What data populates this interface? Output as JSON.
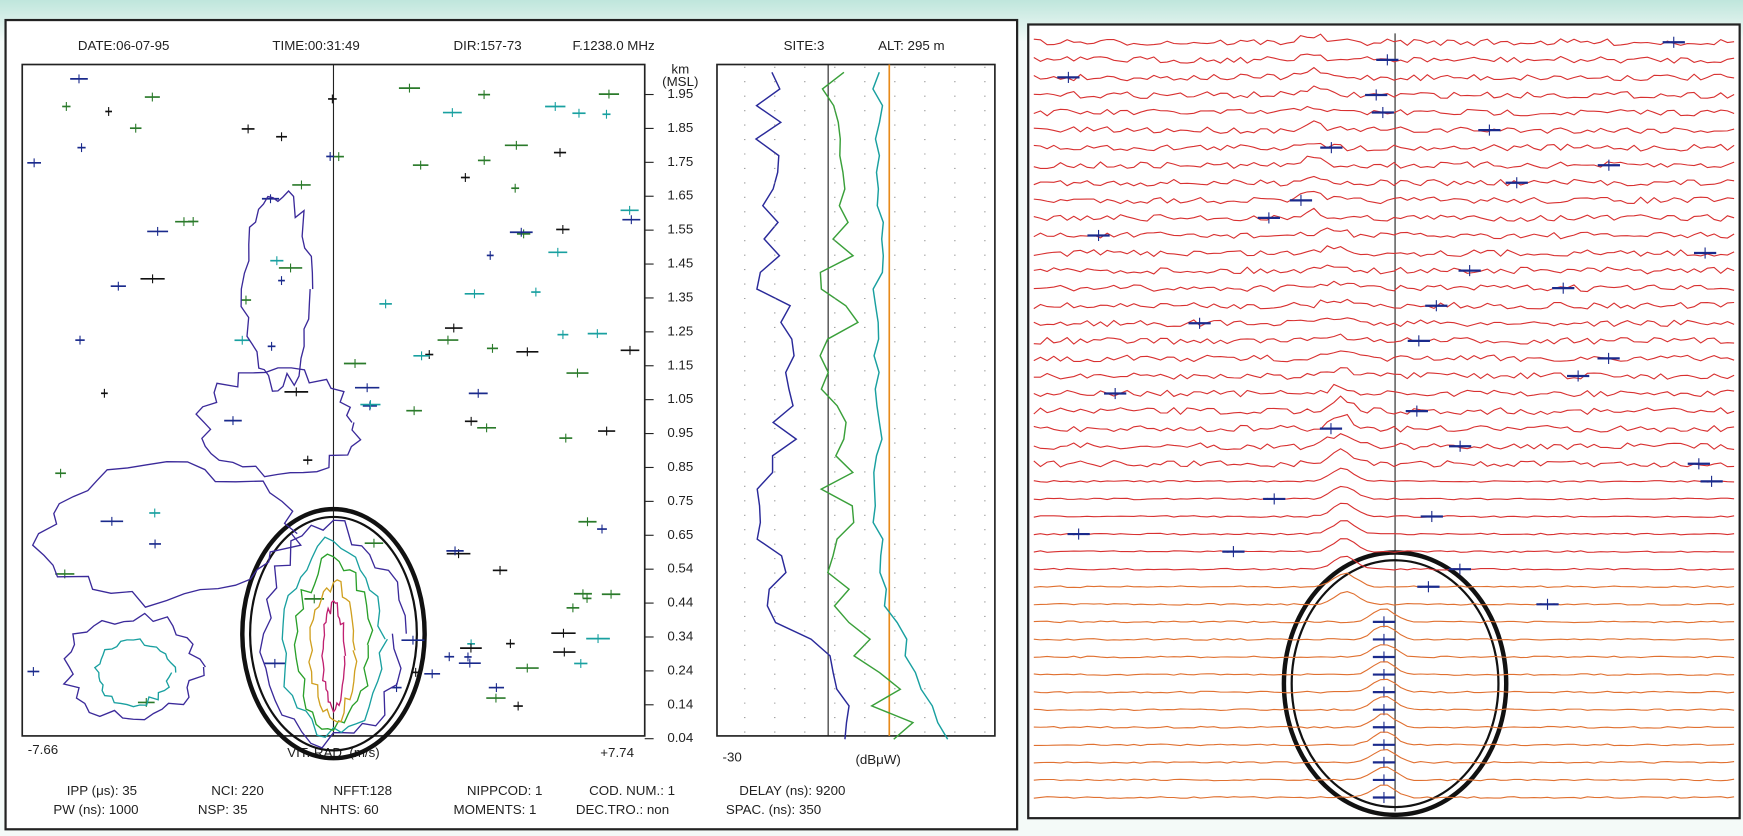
{
  "header": {
    "date": "DATE:06-07-95",
    "time": "TIME:00:31:49",
    "dir": "DIR:157-73",
    "freq": "F.1238.0 MHz",
    "site": "SITE:3",
    "alt": "ALT: 295 m"
  },
  "left_panel": {
    "x_min": "-7.66",
    "x_label": "VIT. RAD. (m/s)",
    "x_max": "+7.74"
  },
  "height_axis": {
    "unit": "km",
    "ref": "(MSL)",
    "labels": [
      "1.95",
      "1.85",
      "1.75",
      "1.65",
      "1.55",
      "1.45",
      "1.35",
      "1.25",
      "1.15",
      "1.05",
      "0.95",
      "0.85",
      "0.75",
      "0.65",
      "0.54",
      "0.44",
      "0.34",
      "0.24",
      "0.14",
      "0.04"
    ]
  },
  "power_panel": {
    "x_min": "-30",
    "x_label": "(dBμW)"
  },
  "footer": {
    "line1": [
      "IPP (μs): 35",
      "NCI: 220",
      "NFFT:128",
      "NIPPCOD: 1",
      "COD. NUM.: 1",
      "DELAY (ns): 9200"
    ],
    "line2": [
      "PW (ns): 1000",
      "NSP: 35",
      "NHTS: 60",
      "MOMENTS: 1",
      "DEC.TRO.: non",
      "SPAC. (ns): 350"
    ]
  }
}
